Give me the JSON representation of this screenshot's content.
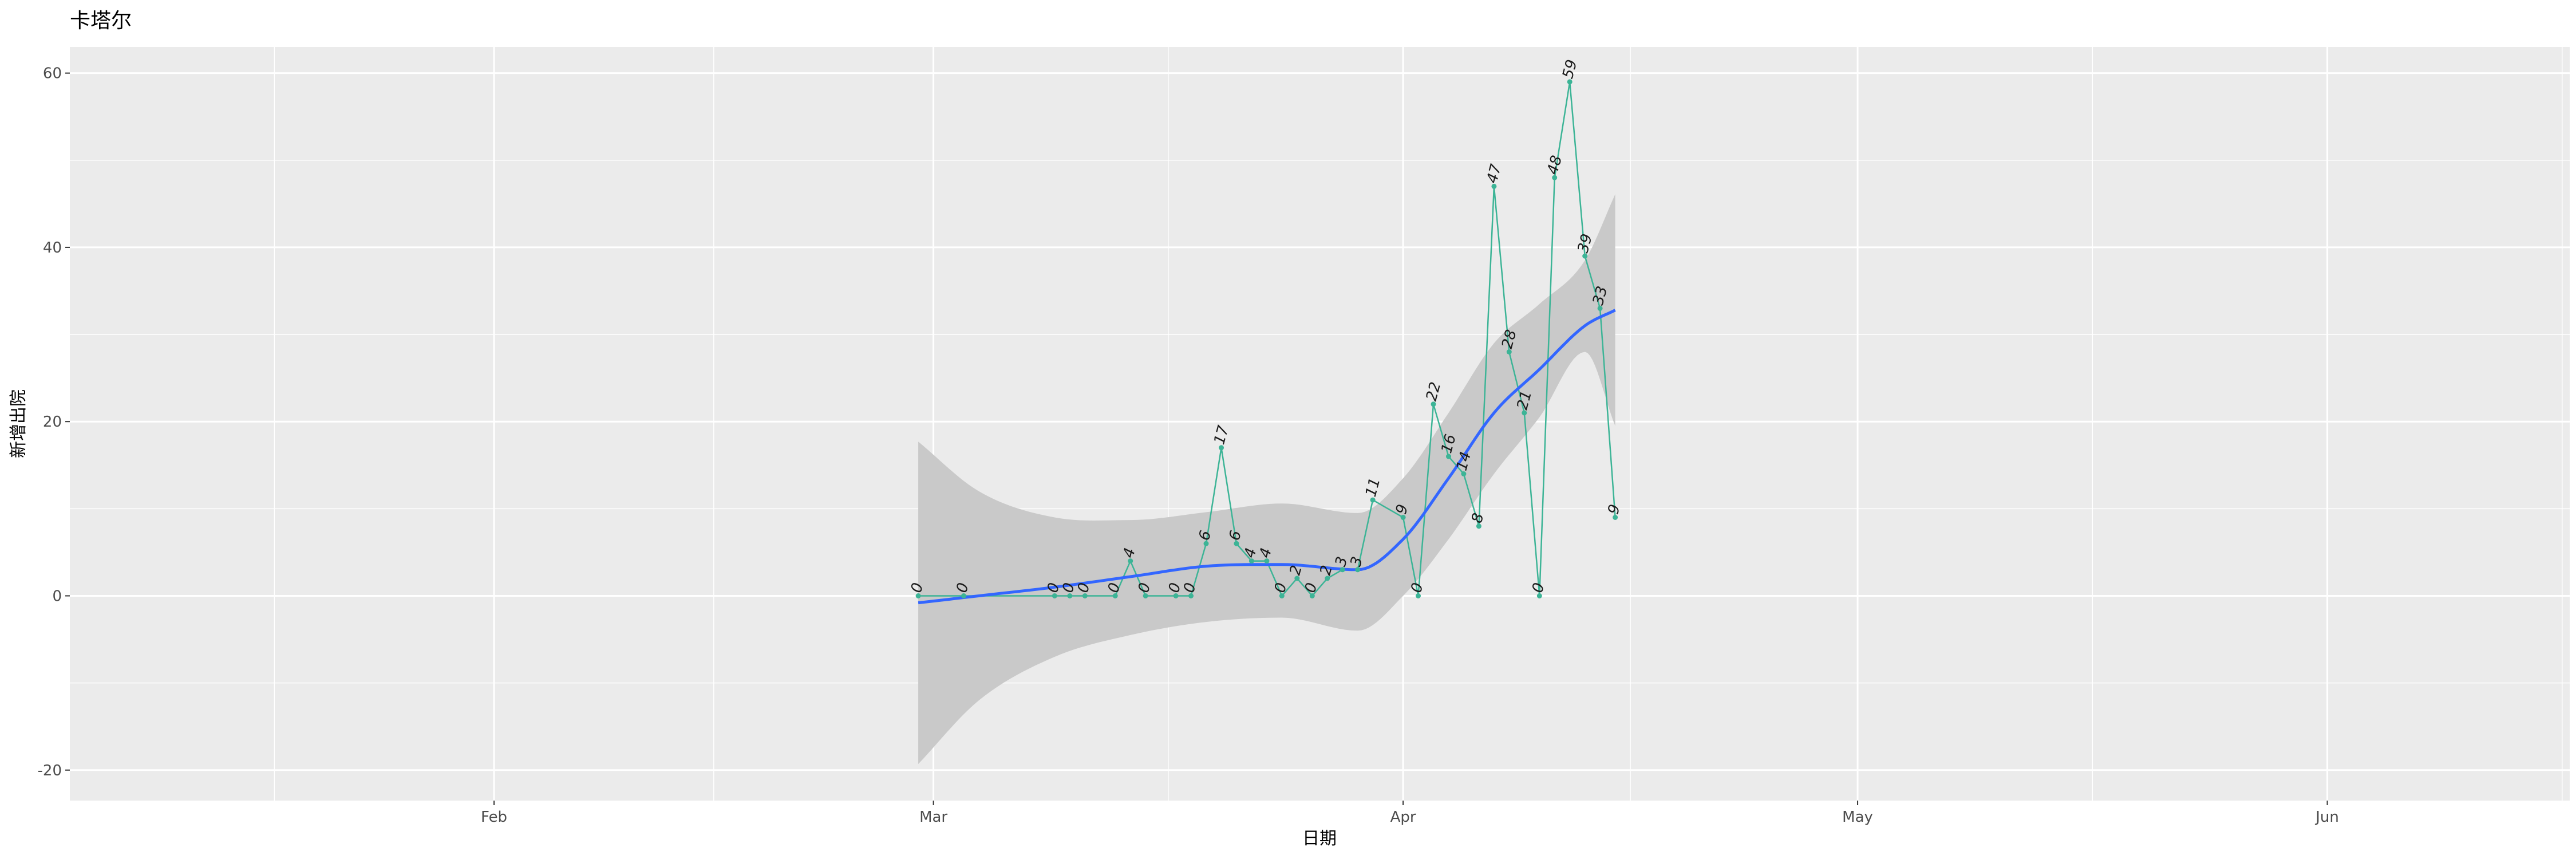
{
  "chart_data": {
    "type": "line",
    "title": "卡塔尔",
    "xlabel": "日期",
    "ylabel": "新增出院",
    "x_ticks": [
      "Feb",
      "Mar",
      "Apr",
      "May",
      "Jun"
    ],
    "x_tick_dates": [
      "2020-02-01",
      "2020-03-01",
      "2020-04-01",
      "2020-05-01",
      "2020-06-01"
    ],
    "xlim": [
      "2020-01-04",
      "2020-06-17"
    ],
    "y_ticks": [
      -20,
      0,
      20,
      40,
      60
    ],
    "ylim": [
      -23.5,
      63
    ],
    "grid": true,
    "series": [
      {
        "x": [
          "2020-02-29",
          "2020-03-03",
          "2020-03-09",
          "2020-03-10",
          "2020-03-11",
          "2020-03-13",
          "2020-03-14",
          "2020-03-15",
          "2020-03-17",
          "2020-03-18",
          "2020-03-19",
          "2020-03-20",
          "2020-03-21",
          "2020-03-22",
          "2020-03-23",
          "2020-03-24",
          "2020-03-25",
          "2020-03-26",
          "2020-03-27",
          "2020-03-28",
          "2020-03-29",
          "2020-03-30",
          "2020-04-01",
          "2020-04-02",
          "2020-04-03",
          "2020-04-04",
          "2020-04-05",
          "2020-04-06",
          "2020-04-07",
          "2020-04-08",
          "2020-04-09",
          "2020-04-10",
          "2020-04-11",
          "2020-04-12",
          "2020-04-13",
          "2020-04-14",
          "2020-04-15"
        ],
        "values": [
          0,
          0,
          0,
          0,
          0,
          0,
          4,
          0,
          0,
          0,
          6,
          17,
          6,
          4,
          4,
          0,
          2,
          0,
          2,
          3,
          3,
          11,
          9,
          0,
          22,
          16,
          14,
          8,
          47,
          28,
          21,
          0,
          48,
          59,
          39,
          33,
          9
        ],
        "labels": [
          "0",
          "0",
          "0",
          "0",
          "0",
          "0",
          "4",
          "0",
          "0",
          "0",
          "6",
          "17",
          "6",
          "4",
          "4",
          "0",
          "2",
          "0",
          "2",
          "3",
          "3",
          "11",
          "9",
          "0",
          "22",
          "16",
          "14",
          "8",
          "47",
          "28",
          "21",
          "0",
          "48",
          "59",
          "39",
          "33",
          "9"
        ],
        "color": "#3cb496"
      }
    ],
    "smooth": {
      "color": "#3366ff",
      "band_color": "#c9c9c9",
      "x": [
        "2020-02-29",
        "2020-03-04",
        "2020-03-09",
        "2020-03-14",
        "2020-03-19",
        "2020-03-24",
        "2020-03-29",
        "2020-04-01",
        "2020-04-04",
        "2020-04-07",
        "2020-04-10",
        "2020-04-13",
        "2020-04-15"
      ],
      "fit": [
        -0.8,
        0.0,
        1.0,
        2.2,
        3.4,
        3.6,
        3.0,
        6.5,
        13.5,
        21.0,
        26.0,
        31.0,
        32.8
      ],
      "lower": [
        -19.3,
        -12.0,
        -7.0,
        -4.5,
        -3.0,
        -2.5,
        -4.0,
        0.0,
        6.5,
        14.0,
        20.5,
        28.0,
        19.5
      ],
      "upper": [
        17.7,
        12.0,
        9.0,
        8.7,
        9.6,
        10.6,
        9.5,
        13.5,
        21.0,
        29.0,
        33.5,
        38.5,
        46.1
      ]
    }
  }
}
